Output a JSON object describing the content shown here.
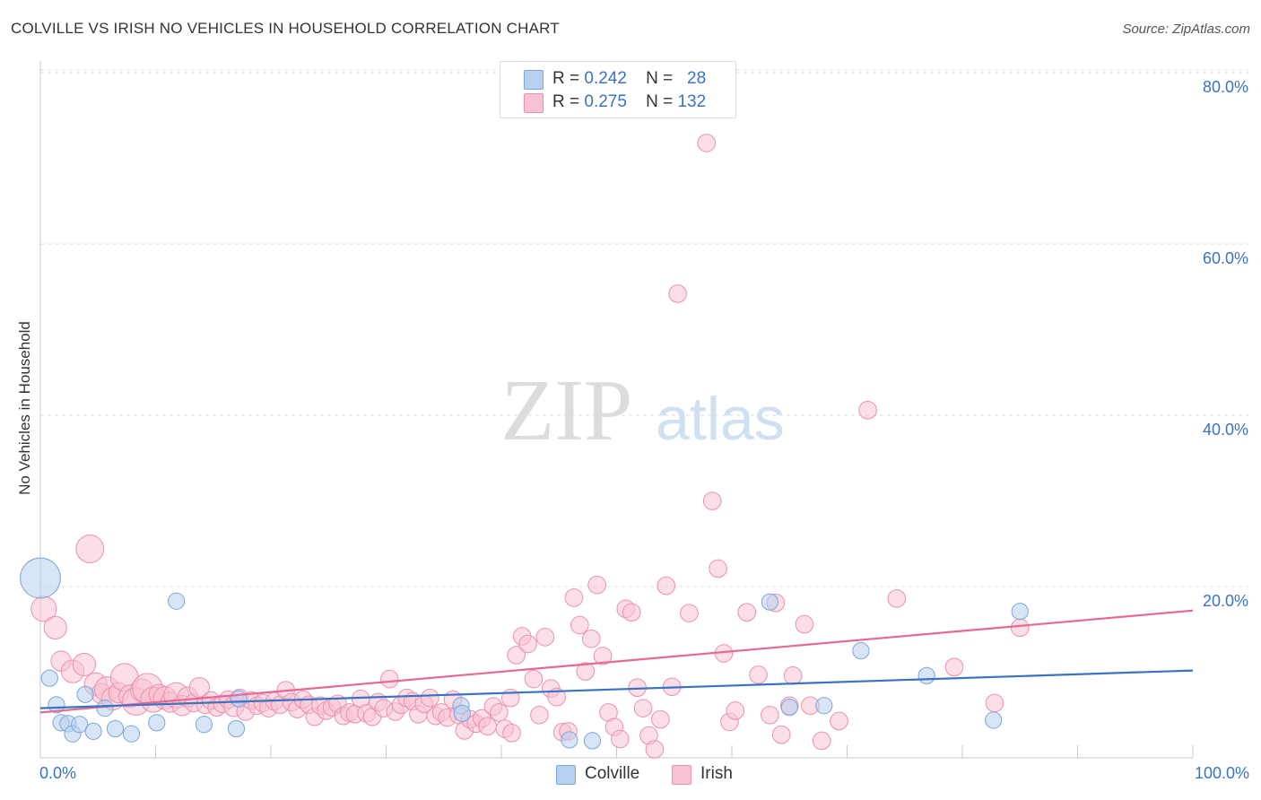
{
  "title": "COLVILLE VS IRISH NO VEHICLES IN HOUSEHOLD CORRELATION CHART",
  "source": "Source: ZipAtlas.com",
  "watermark": {
    "zip": "ZIP",
    "atlas": "atlas"
  },
  "legend": {
    "rows": [
      {
        "r_label": "R =",
        "r_value": "0.242",
        "n_label": "N =",
        "n_value": "28"
      },
      {
        "r_label": "R =",
        "r_value": "0.275",
        "n_label": "N =",
        "n_value": "132"
      }
    ]
  },
  "bottom_legend": {
    "colville": "Colville",
    "irish": "Irish"
  },
  "chart_data": {
    "type": "scatter",
    "ylabel": "No Vehicles in Household",
    "xlim": [
      0,
      100
    ],
    "ylim": [
      0,
      82
    ],
    "x_tick_labels": [
      "0.0%",
      "100.0%"
    ],
    "y_ticks": [
      20,
      40,
      60,
      80
    ],
    "y_tick_labels": [
      "20.0%",
      "40.0%",
      "60.0%",
      "80.0%"
    ],
    "grid": true,
    "colors": {
      "colville_fill": "#b8d0ef",
      "colville_stroke": "#7aa6db",
      "colville_line": "#3a73c4",
      "irish_fill": "#f7c2d2",
      "irish_stroke": "#ec8fad",
      "irish_line": "#e56a93",
      "tick_label": "#3a73c4"
    },
    "series": [
      {
        "name": "Colville",
        "trend": {
          "x0": 0,
          "y0": 5.8,
          "x1": 100,
          "y1": 10.2
        },
        "points": [
          [
            0,
            21,
            3.2
          ],
          [
            0.8,
            9.3,
            1.3
          ],
          [
            1.4,
            6.2,
            1.3
          ],
          [
            1.8,
            4.1,
            1.3
          ],
          [
            2.4,
            4.0,
            1.3
          ],
          [
            2.8,
            2.8,
            1.3
          ],
          [
            3.4,
            3.9,
            1.3
          ],
          [
            3.9,
            7.4,
            1.3
          ],
          [
            4.6,
            3.1,
            1.3
          ],
          [
            5.6,
            5.8,
            1.3
          ],
          [
            6.5,
            3.4,
            1.3
          ],
          [
            7.9,
            2.8,
            1.3
          ],
          [
            10.1,
            4.1,
            1.3
          ],
          [
            11.8,
            18.3,
            1.3
          ],
          [
            14.2,
            3.9,
            1.3
          ],
          [
            17.0,
            3.4,
            1.3
          ],
          [
            17.2,
            6.9,
            1.3
          ],
          [
            36.5,
            6.1,
            1.3
          ],
          [
            36.6,
            5.2,
            1.3
          ],
          [
            45.9,
            2.1,
            1.3
          ],
          [
            47.9,
            2.0,
            1.3
          ],
          [
            63.3,
            18.2,
            1.3
          ],
          [
            65.0,
            5.9,
            1.3
          ],
          [
            68.0,
            6.1,
            1.3
          ],
          [
            71.2,
            12.5,
            1.3
          ],
          [
            76.9,
            9.6,
            1.3
          ],
          [
            82.7,
            4.4,
            1.3
          ],
          [
            85.0,
            17.1,
            1.3
          ]
        ]
      },
      {
        "name": "Irish",
        "trend": {
          "x0": 0,
          "y0": 5.3,
          "x1": 100,
          "y1": 17.2
        },
        "points": [
          [
            0.3,
            17.4,
            2.0
          ],
          [
            1.3,
            15.2,
            1.8
          ],
          [
            1.8,
            11.3,
            1.6
          ],
          [
            2.8,
            10.1,
            1.8
          ],
          [
            3.8,
            10.9,
            1.8
          ],
          [
            4.3,
            24.4,
            2.2
          ],
          [
            4.8,
            8.6,
            1.8
          ],
          [
            5.3,
            7.5,
            1.6
          ],
          [
            5.8,
            8.0,
            2.0
          ],
          [
            6.3,
            6.9,
            1.8
          ],
          [
            6.8,
            7.6,
            1.6
          ],
          [
            7.3,
            9.4,
            2.2
          ],
          [
            7.8,
            7.2,
            1.8
          ],
          [
            8.3,
            6.6,
            2.2
          ],
          [
            8.8,
            7.9,
            1.8
          ],
          [
            9.3,
            8.1,
            2.4
          ],
          [
            9.8,
            6.8,
            2.0
          ],
          [
            10.3,
            7.4,
            1.6
          ],
          [
            10.8,
            7.0,
            1.8
          ],
          [
            11.3,
            6.5,
            1.6
          ],
          [
            11.8,
            7.3,
            2.0
          ],
          [
            12.3,
            6.1,
            1.6
          ],
          [
            12.8,
            7.1,
            1.6
          ],
          [
            13.3,
            6.4,
            1.4
          ],
          [
            13.8,
            8.2,
            1.6
          ],
          [
            14.3,
            6.2,
            1.4
          ],
          [
            14.8,
            6.7,
            1.4
          ],
          [
            15.3,
            5.9,
            1.4
          ],
          [
            15.8,
            6.3,
            1.4
          ],
          [
            16.3,
            6.8,
            1.4
          ],
          [
            16.8,
            6.0,
            1.6
          ],
          [
            17.3,
            7.0,
            1.4
          ],
          [
            17.8,
            5.4,
            1.4
          ],
          [
            18.3,
            6.7,
            1.4
          ],
          [
            18.8,
            6.1,
            1.4
          ],
          [
            19.3,
            6.4,
            1.4
          ],
          [
            19.8,
            5.8,
            1.4
          ],
          [
            20.3,
            6.6,
            1.4
          ],
          [
            20.8,
            6.2,
            1.4
          ],
          [
            21.3,
            7.9,
            1.4
          ],
          [
            21.8,
            6.5,
            1.4
          ],
          [
            22.3,
            5.7,
            1.4
          ],
          [
            22.8,
            6.8,
            1.4
          ],
          [
            23.3,
            6.2,
            1.4
          ],
          [
            23.8,
            4.8,
            1.4
          ],
          [
            24.3,
            6.1,
            1.4
          ],
          [
            24.8,
            5.5,
            1.4
          ],
          [
            25.3,
            5.9,
            1.4
          ],
          [
            25.8,
            6.3,
            1.4
          ],
          [
            26.3,
            4.9,
            1.4
          ],
          [
            26.8,
            5.3,
            1.4
          ],
          [
            27.3,
            5.1,
            1.4
          ],
          [
            27.8,
            6.9,
            1.4
          ],
          [
            28.3,
            5.2,
            1.4
          ],
          [
            28.8,
            4.8,
            1.4
          ],
          [
            29.3,
            6.5,
            1.4
          ],
          [
            29.8,
            5.8,
            1.4
          ],
          [
            30.3,
            9.2,
            1.4
          ],
          [
            30.8,
            5.4,
            1.4
          ],
          [
            31.3,
            6.2,
            1.4
          ],
          [
            31.8,
            7.0,
            1.4
          ],
          [
            32.3,
            6.6,
            1.4
          ],
          [
            32.8,
            5.1,
            1.4
          ],
          [
            33.3,
            6.3,
            1.4
          ],
          [
            33.8,
            7.0,
            1.4
          ],
          [
            34.3,
            4.9,
            1.4
          ],
          [
            34.8,
            5.3,
            1.4
          ],
          [
            35.3,
            4.7,
            1.4
          ],
          [
            35.8,
            6.8,
            1.4
          ],
          [
            36.3,
            5.0,
            1.4
          ],
          [
            36.8,
            3.2,
            1.4
          ],
          [
            37.3,
            4.5,
            1.4
          ],
          [
            37.8,
            4.0,
            1.4
          ],
          [
            38.3,
            4.6,
            1.4
          ],
          [
            38.8,
            3.7,
            1.4
          ],
          [
            39.3,
            6.0,
            1.4
          ],
          [
            39.8,
            5.3,
            1.4
          ],
          [
            40.3,
            3.4,
            1.4
          ],
          [
            40.8,
            7.0,
            1.4
          ],
          [
            41.3,
            12.0,
            1.4
          ],
          [
            41.8,
            14.2,
            1.4
          ],
          [
            42.3,
            13.3,
            1.4
          ],
          [
            42.8,
            9.2,
            1.4
          ],
          [
            43.3,
            5.0,
            1.4
          ],
          [
            43.8,
            14.1,
            1.4
          ],
          [
            44.3,
            8.1,
            1.4
          ],
          [
            44.8,
            7.1,
            1.4
          ],
          [
            45.3,
            3.0,
            1.4
          ],
          [
            45.8,
            3.1,
            1.4
          ],
          [
            46.3,
            18.7,
            1.4
          ],
          [
            46.8,
            15.5,
            1.4
          ],
          [
            47.3,
            10.1,
            1.4
          ],
          [
            47.8,
            13.9,
            1.4
          ],
          [
            48.3,
            20.2,
            1.4
          ],
          [
            48.8,
            11.9,
            1.4
          ],
          [
            49.3,
            5.3,
            1.4
          ],
          [
            49.8,
            3.6,
            1.4
          ],
          [
            50.3,
            2.2,
            1.4
          ],
          [
            50.8,
            17.4,
            1.4
          ],
          [
            51.3,
            17.0,
            1.4
          ],
          [
            51.8,
            8.2,
            1.4
          ],
          [
            52.3,
            5.8,
            1.4
          ],
          [
            52.8,
            2.6,
            1.4
          ],
          [
            53.3,
            1.0,
            1.4
          ],
          [
            53.8,
            4.5,
            1.4
          ],
          [
            54.3,
            20.1,
            1.4
          ],
          [
            54.8,
            8.3,
            1.4
          ],
          [
            55.3,
            54.2,
            1.4
          ],
          [
            56.3,
            16.9,
            1.4
          ],
          [
            57.8,
            71.8,
            1.4
          ],
          [
            58.8,
            22.1,
            1.4
          ],
          [
            58.3,
            30.0,
            1.4
          ],
          [
            59.3,
            12.2,
            1.4
          ],
          [
            59.8,
            4.2,
            1.4
          ],
          [
            60.3,
            5.5,
            1.4
          ],
          [
            61.3,
            17.0,
            1.4
          ],
          [
            62.3,
            9.7,
            1.4
          ],
          [
            63.3,
            5.0,
            1.4
          ],
          [
            65.3,
            9.6,
            1.4
          ],
          [
            66.3,
            15.6,
            1.4
          ],
          [
            66.8,
            6.1,
            1.4
          ],
          [
            67.8,
            2.0,
            1.4
          ],
          [
            69.3,
            4.3,
            1.4
          ],
          [
            71.8,
            40.6,
            1.4
          ],
          [
            74.3,
            18.6,
            1.4
          ],
          [
            79.3,
            10.6,
            1.4
          ],
          [
            82.8,
            6.4,
            1.4
          ],
          [
            85.0,
            15.2,
            1.4
          ],
          [
            64.3,
            2.7,
            1.4
          ],
          [
            63.8,
            18.1,
            1.4
          ],
          [
            40.9,
            2.9,
            1.4
          ],
          [
            65.0,
            6.1,
            1.4
          ]
        ]
      }
    ]
  }
}
